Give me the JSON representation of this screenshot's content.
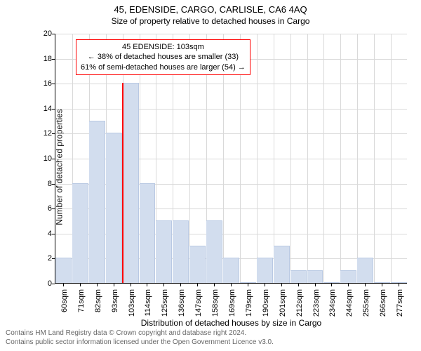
{
  "title": "45, EDENSIDE, CARGO, CARLISLE, CA6 4AQ",
  "subtitle": "Size of property relative to detached houses in Cargo",
  "ylabel": "Number of detached properties",
  "xlabel": "Distribution of detached houses by size in Cargo",
  "chart": {
    "type": "histogram",
    "ylim": [
      0,
      20
    ],
    "ytick_step": 2,
    "bar_color": "#d2ddee",
    "bar_border": "#b9c9e3",
    "grid_color": "#d9d9d9",
    "background_color": "#ffffff",
    "categories": [
      "60sqm",
      "71sqm",
      "82sqm",
      "93sqm",
      "103sqm",
      "114sqm",
      "125sqm",
      "136sqm",
      "147sqm",
      "158sqm",
      "169sqm",
      "179sqm",
      "190sqm",
      "201sqm",
      "212sqm",
      "223sqm",
      "234sqm",
      "244sqm",
      "255sqm",
      "266sqm",
      "277sqm"
    ],
    "values": [
      2,
      8,
      13,
      12,
      16,
      8,
      5,
      5,
      3,
      5,
      2,
      0,
      2,
      3,
      1,
      1,
      0,
      1,
      2,
      0,
      0
    ]
  },
  "yticks": [
    "0",
    "2",
    "4",
    "6",
    "8",
    "10",
    "12",
    "14",
    "16",
    "18",
    "20"
  ],
  "callout": {
    "line1": "45 EDENSIDE: 103sqm",
    "line2": "← 38% of detached houses are smaller (33)",
    "line3": "61% of semi-detached houses are larger (54) →",
    "marker_index": 4,
    "border_color": "#ff0000"
  },
  "footer": {
    "line1": "Contains HM Land Registry data © Crown copyright and database right 2024.",
    "line2": "Contains public sector information licensed under the Open Government Licence v3.0."
  }
}
